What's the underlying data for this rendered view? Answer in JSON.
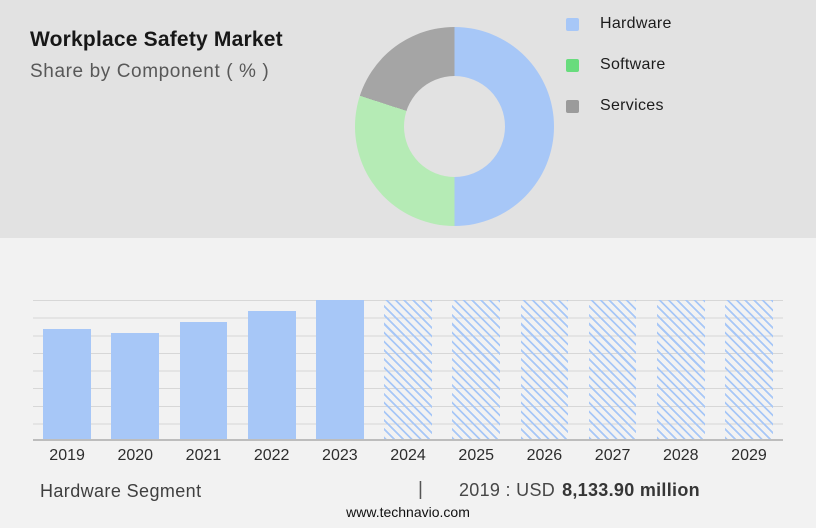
{
  "header": {
    "title": "Workplace Safety Market",
    "subtitle": "Share by Component ( % )"
  },
  "legend": {
    "items": [
      {
        "label": "Hardware",
        "color": "#a7c7f7"
      },
      {
        "label": "Software",
        "color": "#68dc7d"
      },
      {
        "label": "Services",
        "color": "#9b9b9b"
      }
    ]
  },
  "chart_data": [
    {
      "type": "pie",
      "subtype": "donut",
      "title": "Workplace Safety Market — Share by Component ( % )",
      "labels": [
        "Hardware",
        "Software",
        "Services"
      ],
      "values_pct": [
        50,
        30,
        20
      ],
      "slice_colors": [
        "#a7c7f7",
        "#b5ebb5",
        "#a5a5a5"
      ],
      "start_angle_deg": 0,
      "direction": "clockwise",
      "legend_position": "right"
    },
    {
      "type": "bar",
      "categories": [
        "2019",
        "2020",
        "2021",
        "2022",
        "2023",
        "2024",
        "2025",
        "2026",
        "2027",
        "2028",
        "2029"
      ],
      "values_pct_of_max": [
        79,
        76,
        84,
        92,
        100,
        100,
        100,
        100,
        100,
        100,
        100
      ],
      "forecast_from_index": 5,
      "bar_color": "#a7c7f7",
      "forecast_style": "diagonal-hatch",
      "known_point": {
        "category": "2019",
        "value_label": "USD 8,133.90 million"
      },
      "title": "",
      "xlabel": "",
      "ylabel": "",
      "ylim": [
        0,
        100
      ],
      "grid": true,
      "gridline_count": 8
    }
  ],
  "footer": {
    "segment_label": "Hardware Segment",
    "separator": "|",
    "value_prefix": "2019 : USD",
    "value_bold": "8,133.90 million",
    "website": "www.technavio.com"
  },
  "colors": {
    "top_background": "#e2e2e2",
    "bottom_background": "#f2f2f2",
    "gridline": "#d7d7d7",
    "axis_line": "#bdbdbd",
    "title_text": "#171717",
    "subtitle_text": "#585858"
  }
}
